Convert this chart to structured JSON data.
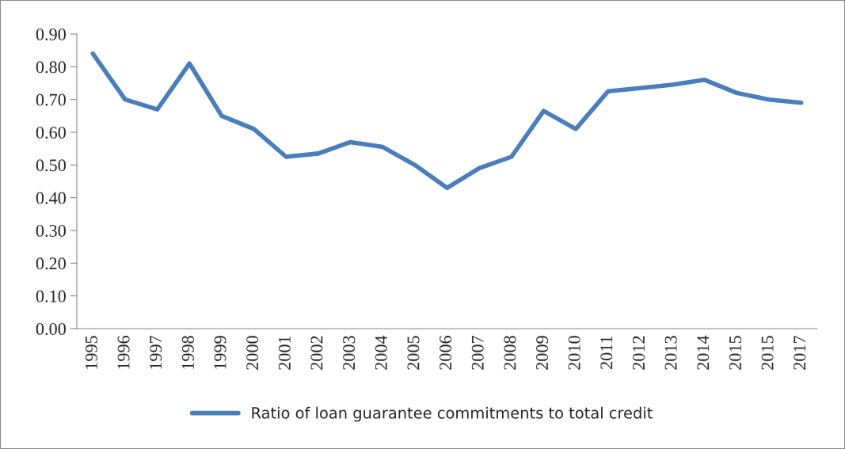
{
  "chart_data": {
    "type": "line",
    "categories": [
      "1995",
      "1996",
      "1997",
      "1998",
      "1999",
      "2000",
      "2001",
      "2002",
      "2003",
      "2004",
      "2005",
      "2006",
      "2007",
      "2008",
      "2009",
      "2010",
      "2011",
      "2012",
      "2013",
      "2014",
      "2015",
      "2015",
      "2017"
    ],
    "series": [
      {
        "name": "Ratio of loan guarantee commitments to total credit",
        "color": "#4a7ebb",
        "values": [
          0.84,
          0.7,
          0.67,
          0.81,
          0.65,
          0.61,
          0.525,
          0.535,
          0.57,
          0.555,
          0.5,
          0.43,
          0.49,
          0.525,
          0.665,
          0.61,
          0.725,
          0.735,
          0.745,
          0.76,
          0.72,
          0.7,
          0.69
        ]
      }
    ],
    "ylim": [
      0,
      0.9
    ],
    "yticks": [
      {
        "value": 0,
        "label": "0.00"
      },
      {
        "value": 0.1,
        "label": "0.10"
      },
      {
        "value": 0.2,
        "label": "0.20"
      },
      {
        "value": 0.3,
        "label": "0.30"
      },
      {
        "value": 0.4,
        "label": "0.40"
      },
      {
        "value": 0.5,
        "label": "0.50"
      },
      {
        "value": 0.6,
        "label": "0.60"
      },
      {
        "value": 0.7,
        "label": "0.70"
      },
      {
        "value": 0.8,
        "label": "0.80"
      },
      {
        "value": 0.9,
        "label": "0.90"
      }
    ],
    "grid": false,
    "legend": "bottom",
    "marker": "none",
    "line_style": "solid"
  }
}
